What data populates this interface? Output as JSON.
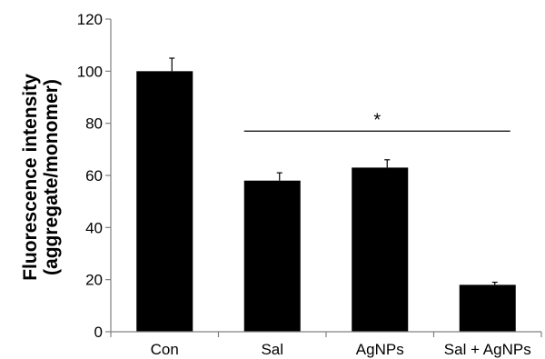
{
  "chart_data": {
    "type": "bar",
    "title": "",
    "xlabel": "",
    "ylabel_line1": "Fluorescence intensity",
    "ylabel_line2": "(aggregate/monomer)",
    "categories": [
      "Con",
      "Sal",
      "AgNPs",
      "Sal + AgNPs"
    ],
    "values": [
      100,
      58,
      63,
      18
    ],
    "errors": [
      5,
      3,
      3,
      1
    ],
    "ylim": [
      0,
      120
    ],
    "yticks": [
      0,
      20,
      40,
      60,
      80,
      100,
      120
    ],
    "bar_color": "#000000",
    "grid": false,
    "significance": {
      "label": "*",
      "from_category": "Sal",
      "to_category": "Sal + AgNPs",
      "y": 77
    }
  }
}
